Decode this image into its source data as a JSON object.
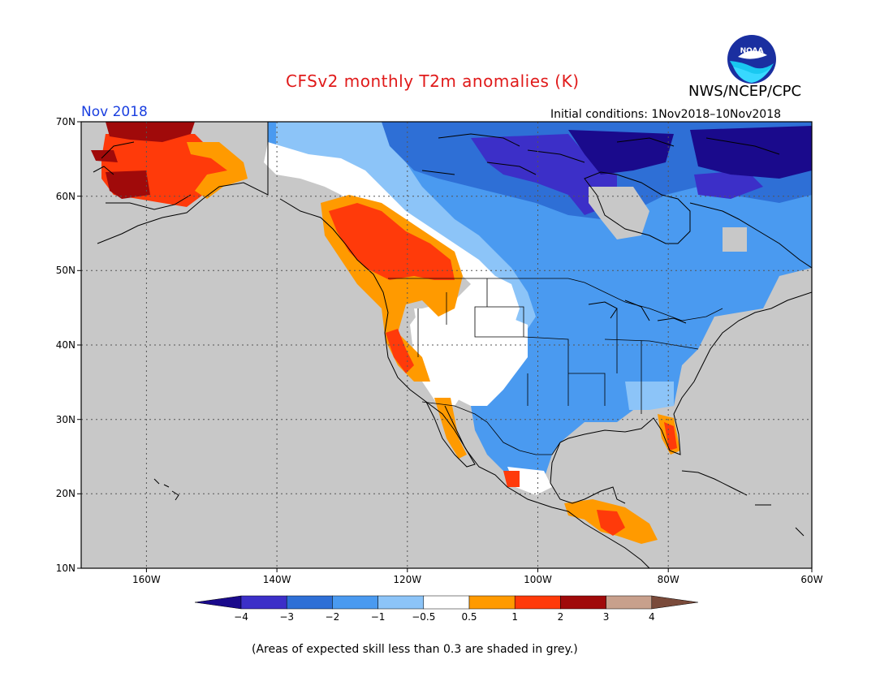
{
  "header": {
    "title": "CFSv2 monthly T2m anomalies (K)",
    "agency": "NWS/NCEP/CPC",
    "month": "Nov 2018",
    "initial_conditions": "Initial conditions: 1Nov2018–10Nov2018",
    "logo_text": "NOAA"
  },
  "map": {
    "lon_range": [
      -172,
      -60
    ],
    "lat_range": [
      10,
      70
    ],
    "lat_labels": [
      "10N",
      "20N",
      "30N",
      "40N",
      "50N",
      "60N",
      "70N"
    ],
    "lon_labels": [
      "160W",
      "140W",
      "120W",
      "100W",
      "80W",
      "60W"
    ],
    "grid": true,
    "background_color": "#c8c8c8"
  },
  "colorbar": {
    "levels": [
      "−4",
      "−3",
      "−2",
      "−1",
      "−0.5",
      "0.5",
      "1",
      "2",
      "3",
      "4"
    ],
    "colors": [
      "#1a0a8c",
      "#3c2fc8",
      "#2e6fd6",
      "#4a9af0",
      "#8cc4f8",
      "#ffffff",
      "#ff9a00",
      "#ff3a0a",
      "#a00a0a",
      "#c8a08c",
      "#7a4a3a"
    ]
  },
  "footnote": "(Areas of expected skill less than 0.3 are shaded in grey.)"
}
